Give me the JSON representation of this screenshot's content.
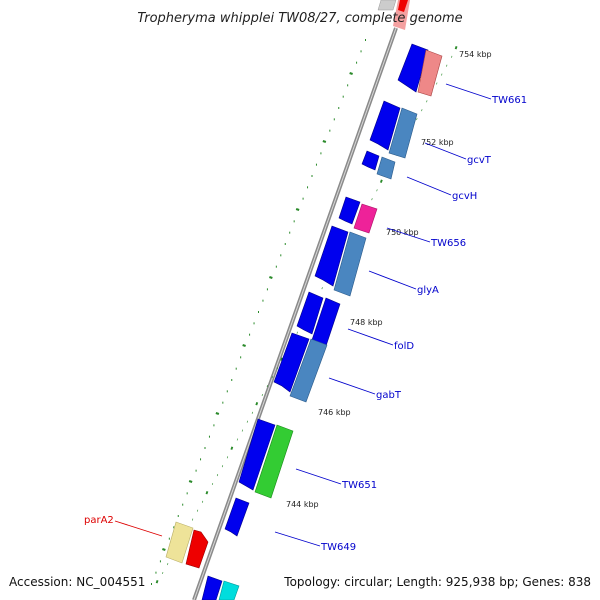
{
  "title": "Tropheryma whipplei TW08/27, complete genome",
  "accession": "Accession: NC_004551",
  "summary": "Topology: circular; Length: 925,938 bp; Genes: 838",
  "ruler": [
    {
      "kbp": 754,
      "label": "754 kbp"
    },
    {
      "kbp": 752,
      "label": "752 kbp"
    },
    {
      "kbp": 750,
      "label": "750 kbp"
    },
    {
      "kbp": 748,
      "label": "748 kbp"
    },
    {
      "kbp": 746,
      "label": "746 kbp"
    },
    {
      "kbp": 744,
      "label": "744 kbp"
    }
  ],
  "gene_labels": [
    {
      "name": "TW661",
      "color": "#0000cc"
    },
    {
      "name": "gcvT",
      "color": "#0000cc"
    },
    {
      "name": "gcvH",
      "color": "#0000cc"
    },
    {
      "name": "TW656",
      "color": "#0000cc"
    },
    {
      "name": "glyA",
      "color": "#0000cc"
    },
    {
      "name": "folD",
      "color": "#0000cc"
    },
    {
      "name": "gabT",
      "color": "#0000cc"
    },
    {
      "name": "TW651",
      "color": "#0000cc"
    },
    {
      "name": "TW649",
      "color": "#0000cc"
    },
    {
      "name": "parA2",
      "color": "#dd0000"
    }
  ],
  "colors": {
    "backbone": "#8a8a8a",
    "tick": "#2a8a2a",
    "cds_blue": "#0000ee",
    "steel": "#4a86c0",
    "salmon": "#ee8888",
    "red": "#ee0000",
    "magenta": "#ee2299",
    "green": "#33cc33",
    "khaki": "#eee399",
    "cyan": "#00dddd"
  }
}
